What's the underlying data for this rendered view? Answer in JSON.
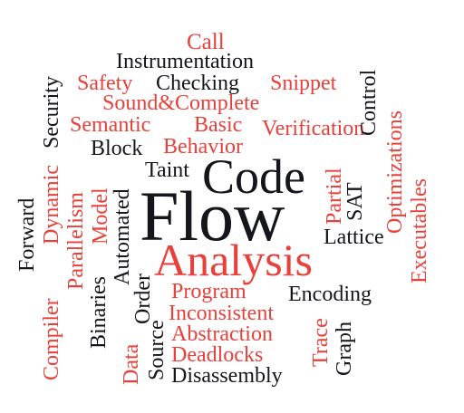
{
  "word_cloud": {
    "colors": {
      "red": "#e8413b",
      "dark": "#14161b"
    },
    "words": [
      "Call",
      "Instrumentation",
      "Safety",
      "Checking",
      "Snippet",
      "Sound&Complete",
      "Semantic",
      "Basic",
      "Verification",
      "Block",
      "Behavior",
      "Taint",
      "Code",
      "Flow",
      "Analysis",
      "Lattice",
      "Program",
      "Encoding",
      "Inconsistent",
      "Abstraction",
      "Deadlocks",
      "Disassembly",
      "Security",
      "Dynamic",
      "Compiler",
      "Parallelism",
      "Model",
      "Forward",
      "Binaries",
      "Automated",
      "Order",
      "Data",
      "Source",
      "Partial",
      "SAT",
      "Trace",
      "Graph",
      "Control",
      "Optimizations",
      "Executables"
    ]
  }
}
